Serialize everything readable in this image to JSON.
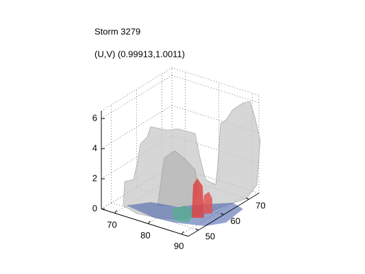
{
  "chart_data": {
    "type": "volume3d",
    "title": "Storm 3279",
    "subtitle": "(U,V) (0.99913,1.0011)",
    "xlim": [
      66,
      92
    ],
    "ylim": [
      46,
      74
    ],
    "zlim": [
      0,
      6.5
    ],
    "xticks": [
      70,
      80,
      90
    ],
    "yticks": [
      50,
      60,
      70
    ],
    "zticks": [
      0,
      2,
      4,
      6
    ],
    "grid": true
  }
}
